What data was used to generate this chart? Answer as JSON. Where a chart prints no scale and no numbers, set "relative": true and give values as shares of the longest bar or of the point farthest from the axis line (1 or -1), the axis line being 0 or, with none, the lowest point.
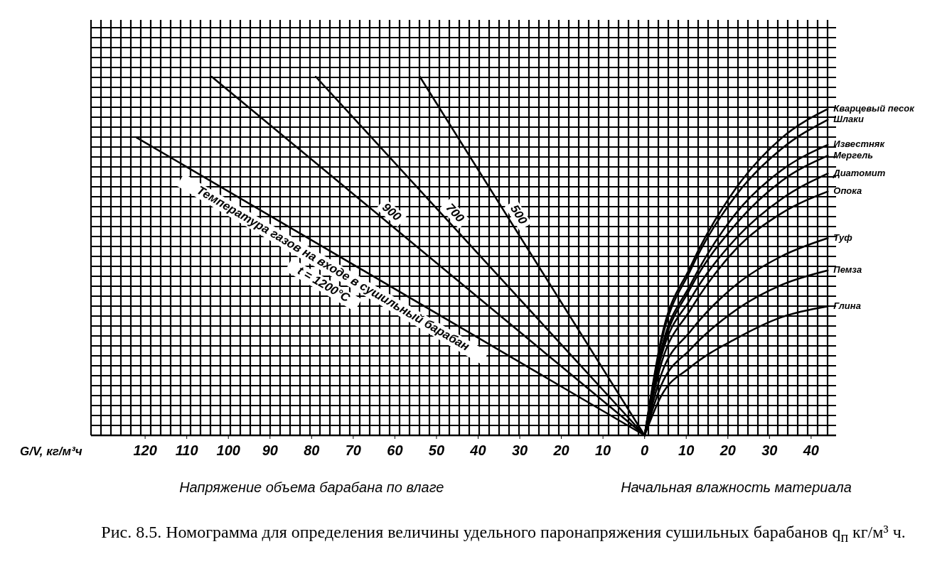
{
  "chart_data": {
    "type": "line",
    "relative": true,
    "grid": true,
    "line_style": "solid",
    "xlabel": "Напряжение объема барабана по влаге",
    "xlim": [
      -133,
      46
    ],
    "xticks": [
      {
        "value": -120,
        "label": "120"
      },
      {
        "value": -110,
        "label": "110"
      },
      {
        "value": -100,
        "label": "100"
      },
      {
        "value": -90,
        "label": "90"
      },
      {
        "value": -80,
        "label": "80"
      },
      {
        "value": -70,
        "label": "70"
      },
      {
        "value": -60,
        "label": "60"
      },
      {
        "value": -50,
        "label": "50"
      },
      {
        "value": -40,
        "label": "40"
      },
      {
        "value": -30,
        "label": "30"
      },
      {
        "value": -20,
        "label": "20"
      },
      {
        "value": -10,
        "label": "10"
      },
      0,
      10,
      20,
      30,
      40
    ],
    "annotations": [
      "Начальная влажность материала",
      "G/V, кг/м³ч",
      "Температура газов на входе в сушильный барабан",
      "Рис. 8.5. Номограмма для определения величины удельного паронапряжения сушильных барабанов q$_{п}$ кг/м³ ч."
    ],
    "series": [
      {
        "name": "t = 1200°C",
        "color": "#000000",
        "x": [
          -122,
          0
        ],
        "values": [
          0.83,
          0
        ]
      },
      {
        "name": "900",
        "color": "#000000",
        "x": [
          -104,
          0
        ],
        "values": [
          1,
          0
        ]
      },
      {
        "name": "700",
        "color": "#000000",
        "x": [
          -79,
          0
        ],
        "values": [
          1,
          0
        ]
      },
      {
        "name": "500",
        "color": "#000000",
        "x": [
          -54,
          0
        ],
        "values": [
          1,
          0
        ]
      },
      {
        "name": "Кварцевый песок",
        "color": "#000000",
        "x": [
          0,
          4,
          11,
          22,
          33,
          44
        ],
        "values": [
          0,
          0.27,
          0.47,
          0.69,
          0.83,
          0.91
        ]
      },
      {
        "name": "Шлаки",
        "color": "#000000",
        "x": [
          0,
          4,
          11,
          22,
          33,
          44
        ],
        "values": [
          0,
          0.26,
          0.46,
          0.67,
          0.8,
          0.88
        ]
      },
      {
        "name": "Известняк",
        "color": "#000000",
        "x": [
          0,
          4,
          11,
          22,
          33,
          44
        ],
        "values": [
          0,
          0.24,
          0.42,
          0.62,
          0.74,
          0.81
        ]
      },
      {
        "name": "Мергель",
        "color": "#000000",
        "x": [
          0,
          4,
          11,
          22,
          33,
          44
        ],
        "values": [
          0,
          0.23,
          0.41,
          0.59,
          0.71,
          0.78
        ]
      },
      {
        "name": "Диатомит",
        "color": "#000000",
        "x": [
          0,
          4,
          11,
          22,
          33,
          44
        ],
        "values": [
          0,
          0.22,
          0.38,
          0.55,
          0.66,
          0.73
        ]
      },
      {
        "name": "Опока",
        "color": "#000000",
        "x": [
          0,
          4,
          11,
          22,
          33,
          44
        ],
        "values": [
          0,
          0.2,
          0.35,
          0.52,
          0.62,
          0.68
        ]
      },
      {
        "name": "Туф",
        "color": "#000000",
        "x": [
          0,
          4,
          11,
          22,
          33,
          44
        ],
        "values": [
          0,
          0.17,
          0.29,
          0.42,
          0.5,
          0.55
        ]
      },
      {
        "name": "Пемза",
        "color": "#000000",
        "x": [
          0,
          4,
          11,
          22,
          33,
          44
        ],
        "values": [
          0,
          0.14,
          0.24,
          0.35,
          0.42,
          0.46
        ]
      },
      {
        "name": "Глина",
        "color": "#000000",
        "x": [
          0,
          4,
          11,
          22,
          33,
          44
        ],
        "values": [
          0,
          0.11,
          0.19,
          0.27,
          0.33,
          0.36
        ]
      }
    ]
  }
}
